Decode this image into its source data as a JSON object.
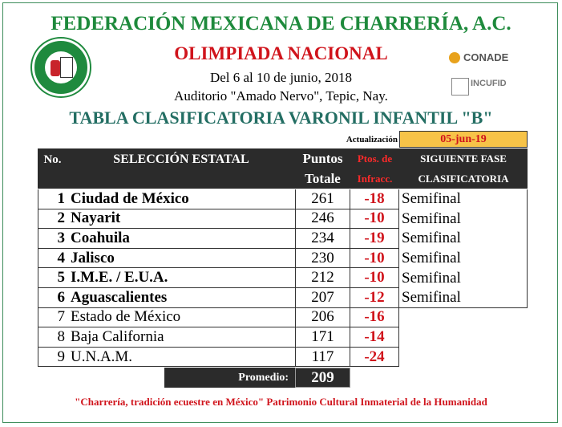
{
  "header": {
    "title": "FEDERACIÓN MEXICANA DE CHARRERÍA, A.C.",
    "subtitle": "OLIMPIADA NACIONAL",
    "date": "Del 6 al 10 de junio, 2018",
    "venue": "Auditorio \"Amado Nervo\", Tepic, Nay.",
    "table_title": "TABLA CLASIFICATORIA VARONIL INFANTIL \"B\""
  },
  "logos": {
    "conade": "CONADE",
    "incufid": "INCUFID"
  },
  "update": {
    "label": "Actualización",
    "date": "05-jun-19"
  },
  "table": {
    "columns": [
      "No.",
      "SELECCIÓN ESTATAL",
      [
        "Puntos",
        "Totale"
      ],
      [
        "Ptos. de",
        "Infracc."
      ],
      [
        "SIGUIENTE FASE",
        "CLASIFICATORIA"
      ]
    ],
    "rows": [
      [
        1,
        "Ciudad de México",
        261,
        -18,
        "Semifinal"
      ],
      [
        2,
        "Nayarit",
        246,
        -10,
        "Semifinal"
      ],
      [
        3,
        "Coahuila",
        234,
        -19,
        "Semifinal"
      ],
      [
        4,
        "Jalisco",
        230,
        -10,
        "Semifinal"
      ],
      [
        5,
        "I.M.E. / E.U.A.",
        212,
        -10,
        "Semifinal"
      ],
      [
        6,
        "Aguascalientes",
        207,
        -12,
        "Semifinal"
      ],
      [
        7,
        "Estado de México",
        206,
        -16
      ],
      [
        8,
        "Baja California",
        171,
        -14
      ],
      [
        9,
        "U.N.A.M.",
        117,
        -24
      ]
    ],
    "average_label": "Promedio:",
    "average": 209
  },
  "footer": "\"Charrería, tradición ecuestre en México\" Patrimonio Cultural Inmaterial de la Humanidad"
}
